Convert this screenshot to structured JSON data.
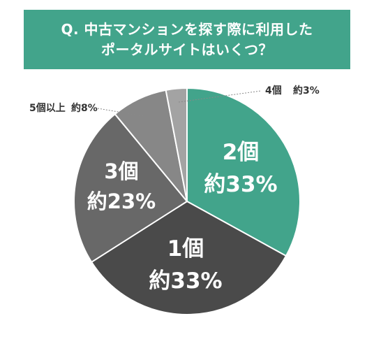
{
  "title": {
    "line1": "Q. 中古マンションを探す際に利用した",
    "line2": "ポータルサイトはいくつ？"
  },
  "colors": {
    "banner": "#42a48b",
    "slice_2": "#42a48b",
    "slice_1": "#4a4a4a",
    "slice_3": "#686868",
    "slice_5plus": "#878787",
    "slice_4": "#a3a3a3",
    "separator": "#ffffff",
    "outside_label": "#333333",
    "leader": "#888888"
  },
  "chart_data": {
    "type": "pie",
    "title": "Q. 中古マンションを探す際に利用したポータルサイトはいくつ？",
    "slices": [
      {
        "category": "2個",
        "value_label": "約33%",
        "value": 33,
        "color": "#42a48b",
        "label_position": "inside"
      },
      {
        "category": "1個",
        "value_label": "約33%",
        "value": 33,
        "color": "#4a4a4a",
        "label_position": "inside"
      },
      {
        "category": "3個",
        "value_label": "約23%",
        "value": 23,
        "color": "#686868",
        "label_position": "inside"
      },
      {
        "category": "5個以上",
        "value_label": "約8%",
        "value": 8,
        "color": "#878787",
        "label_position": "outside"
      },
      {
        "category": "4個",
        "value_label": "約3%",
        "value": 3,
        "color": "#a3a3a3",
        "label_position": "outside"
      }
    ]
  }
}
